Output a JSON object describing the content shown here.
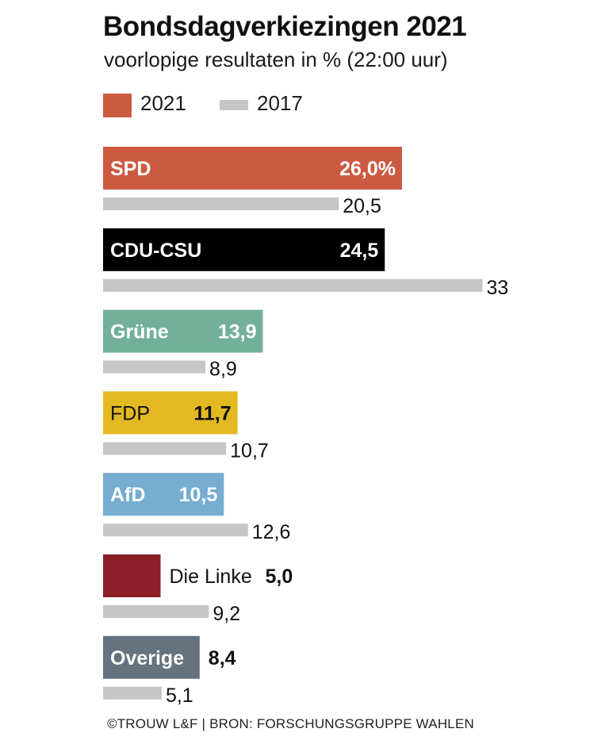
{
  "chart_data": {
    "type": "bar",
    "orientation": "horizontal",
    "title": "Bondsdagverkiezingen 2021",
    "subtitle": "voorlopige resultaten in % (22:00 uur)",
    "xlabel": "",
    "ylabel": "",
    "xlim": [
      0,
      35
    ],
    "grid": false,
    "legend_position": "top-left",
    "legend": [
      {
        "name": "2021",
        "color": "#cc5a43"
      },
      {
        "name": "2017",
        "color": "#c6c6c6"
      }
    ],
    "categories": [
      "SPD",
      "CDU-CSU",
      "Grüne",
      "FDP",
      "AfD",
      "Die Linke",
      "Overige"
    ],
    "series": [
      {
        "name": "2021",
        "values": [
          26.0,
          24.5,
          13.9,
          11.7,
          10.5,
          5.0,
          8.4
        ],
        "labels": [
          "26,0%",
          "24,5",
          "13,9",
          "11,7",
          "10,5",
          "5,0",
          "8,4"
        ],
        "colors": [
          "#cc5a43",
          "#000000",
          "#72b09a",
          "#e3b922",
          "#76add0",
          "#8c1f28",
          "#65737e"
        ],
        "label_colors": [
          "#ffffff",
          "#ffffff",
          "#ffffff",
          "#111111",
          "#ffffff",
          "#111111",
          "#111111"
        ],
        "label_placement": [
          "inside",
          "inside",
          "inside",
          "inside",
          "inside",
          "outside",
          "outside"
        ]
      },
      {
        "name": "2017",
        "values": [
          20.5,
          33.0,
          8.9,
          10.7,
          12.6,
          9.2,
          5.1
        ],
        "labels": [
          "20,5",
          "33",
          "8,9",
          "10,7",
          "12,6",
          "9,2",
          "5,1"
        ],
        "color": "#c6c6c6"
      }
    ],
    "footer": "©TROUW L&F | BRON: FORSCHUNGSGRUPPE WAHLEN"
  }
}
